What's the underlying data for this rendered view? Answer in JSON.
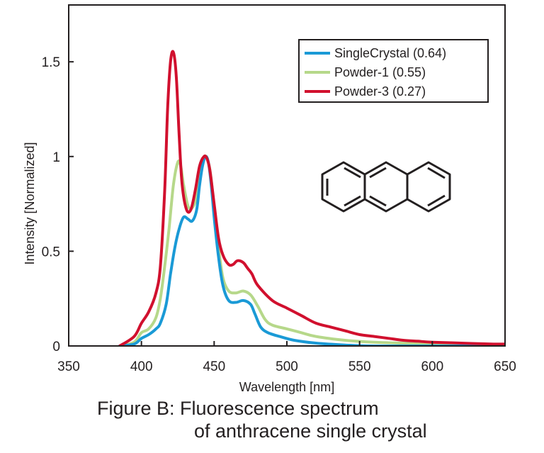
{
  "chart_data": {
    "type": "line",
    "xlabel": "Wavelength [nm]",
    "ylabel": "Intensity [Normalized]",
    "xlim": [
      350,
      650
    ],
    "ylim": [
      0,
      1.8
    ],
    "xticks": [
      "350",
      "400",
      "450",
      "500",
      "550",
      "600",
      "650"
    ],
    "yticks": [
      "0",
      "0.5",
      "1",
      "1.5"
    ],
    "legend_position": "top-right",
    "series": [
      {
        "name": "SingleCrystal (0.64)",
        "color": "#1a9ad6",
        "x": [
          385,
          395,
          400,
          405,
          410,
          413,
          417,
          420,
          423,
          426,
          429,
          432,
          435,
          438,
          440,
          442,
          444,
          446,
          448,
          450,
          453,
          456,
          460,
          465,
          470,
          475,
          478,
          482,
          487,
          495,
          505,
          520,
          540,
          560,
          600,
          650
        ],
        "y": [
          0.0,
          0.01,
          0.04,
          0.06,
          0.09,
          0.12,
          0.22,
          0.38,
          0.52,
          0.62,
          0.68,
          0.67,
          0.66,
          0.72,
          0.85,
          0.95,
          1.0,
          0.97,
          0.85,
          0.68,
          0.47,
          0.32,
          0.24,
          0.23,
          0.24,
          0.22,
          0.17,
          0.1,
          0.07,
          0.05,
          0.03,
          0.015,
          0.005,
          0.0,
          0.0,
          0.0
        ]
      },
      {
        "name": "Powder-1 (0.55)",
        "color": "#b6d88a",
        "x": [
          385,
          395,
          400,
          405,
          410,
          413,
          416,
          419,
          422,
          425,
          427,
          429,
          432,
          435,
          438,
          441,
          444,
          446,
          448,
          450,
          453,
          456,
          460,
          465,
          470,
          475,
          480,
          485,
          490,
          500,
          510,
          520,
          540,
          560,
          600,
          650
        ],
        "y": [
          0.0,
          0.02,
          0.07,
          0.09,
          0.15,
          0.25,
          0.42,
          0.62,
          0.85,
          0.97,
          0.95,
          0.85,
          0.74,
          0.73,
          0.79,
          0.93,
          1.0,
          0.97,
          0.88,
          0.71,
          0.52,
          0.36,
          0.29,
          0.28,
          0.29,
          0.27,
          0.21,
          0.14,
          0.11,
          0.09,
          0.07,
          0.05,
          0.03,
          0.02,
          0.01,
          0.005
        ]
      },
      {
        "name": "Powder-3 (0.27)",
        "color": "#d1102e",
        "x": [
          385,
          395,
          400,
          405,
          410,
          413,
          416,
          418,
          420,
          422,
          424,
          426,
          428,
          431,
          434,
          437,
          440,
          443,
          445,
          447,
          450,
          453,
          456,
          460,
          463,
          466,
          470,
          473,
          476,
          480,
          490,
          500,
          510,
          520,
          530,
          540,
          550,
          560,
          570,
          580,
          590,
          600,
          620,
          640,
          650
        ],
        "y": [
          0.0,
          0.05,
          0.12,
          0.18,
          0.28,
          0.42,
          0.82,
          1.25,
          1.5,
          1.55,
          1.42,
          1.1,
          0.85,
          0.72,
          0.72,
          0.82,
          0.95,
          1.0,
          0.99,
          0.93,
          0.75,
          0.57,
          0.48,
          0.43,
          0.43,
          0.45,
          0.44,
          0.41,
          0.38,
          0.32,
          0.24,
          0.2,
          0.16,
          0.12,
          0.1,
          0.08,
          0.06,
          0.05,
          0.04,
          0.03,
          0.025,
          0.02,
          0.015,
          0.01,
          0.01
        ]
      }
    ]
  },
  "caption": {
    "line1": "Figure B: Fluorescence spectrum",
    "line2": "of anthracene single crystal"
  }
}
